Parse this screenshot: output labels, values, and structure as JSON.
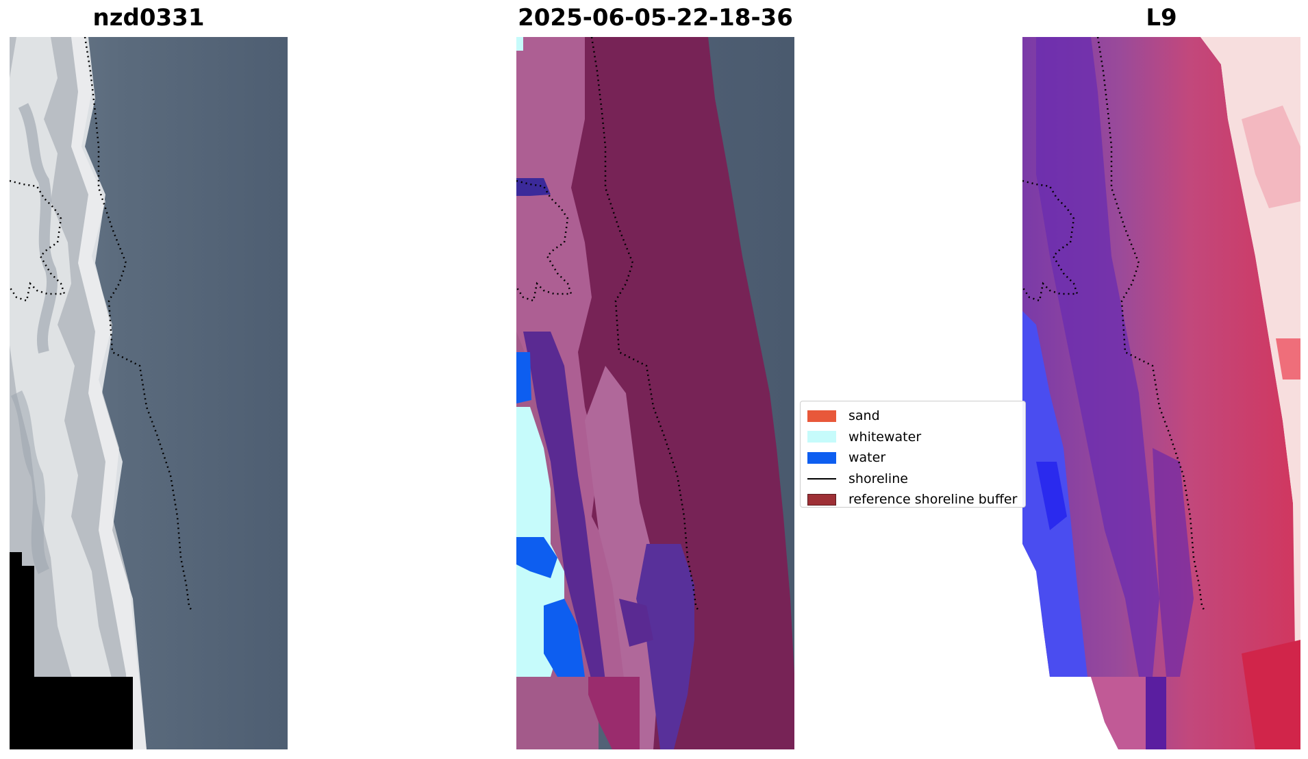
{
  "panels": [
    {
      "title": "nzd0331"
    },
    {
      "title": "2025-06-05-22-18-36"
    },
    {
      "title": "L9"
    }
  ],
  "legend": {
    "items": [
      {
        "label": "sand",
        "color": "#e8583a",
        "kind": "patch"
      },
      {
        "label": "whitewater",
        "color": "#c6fbfb",
        "kind": "patch"
      },
      {
        "label": "water",
        "color": "#0d5ef0",
        "kind": "patch"
      },
      {
        "label": "shoreline",
        "color": "#000000",
        "kind": "line"
      },
      {
        "label": "reference shoreline buffer",
        "color": "#9e3036",
        "kind": "patch"
      }
    ]
  },
  "colors": {
    "ocean": "#57677a",
    "buffer": "#772356",
    "water_class": "#0d5ef0",
    "whitewater_class": "#c6fbfb",
    "shoreline_dots": "#000000"
  }
}
